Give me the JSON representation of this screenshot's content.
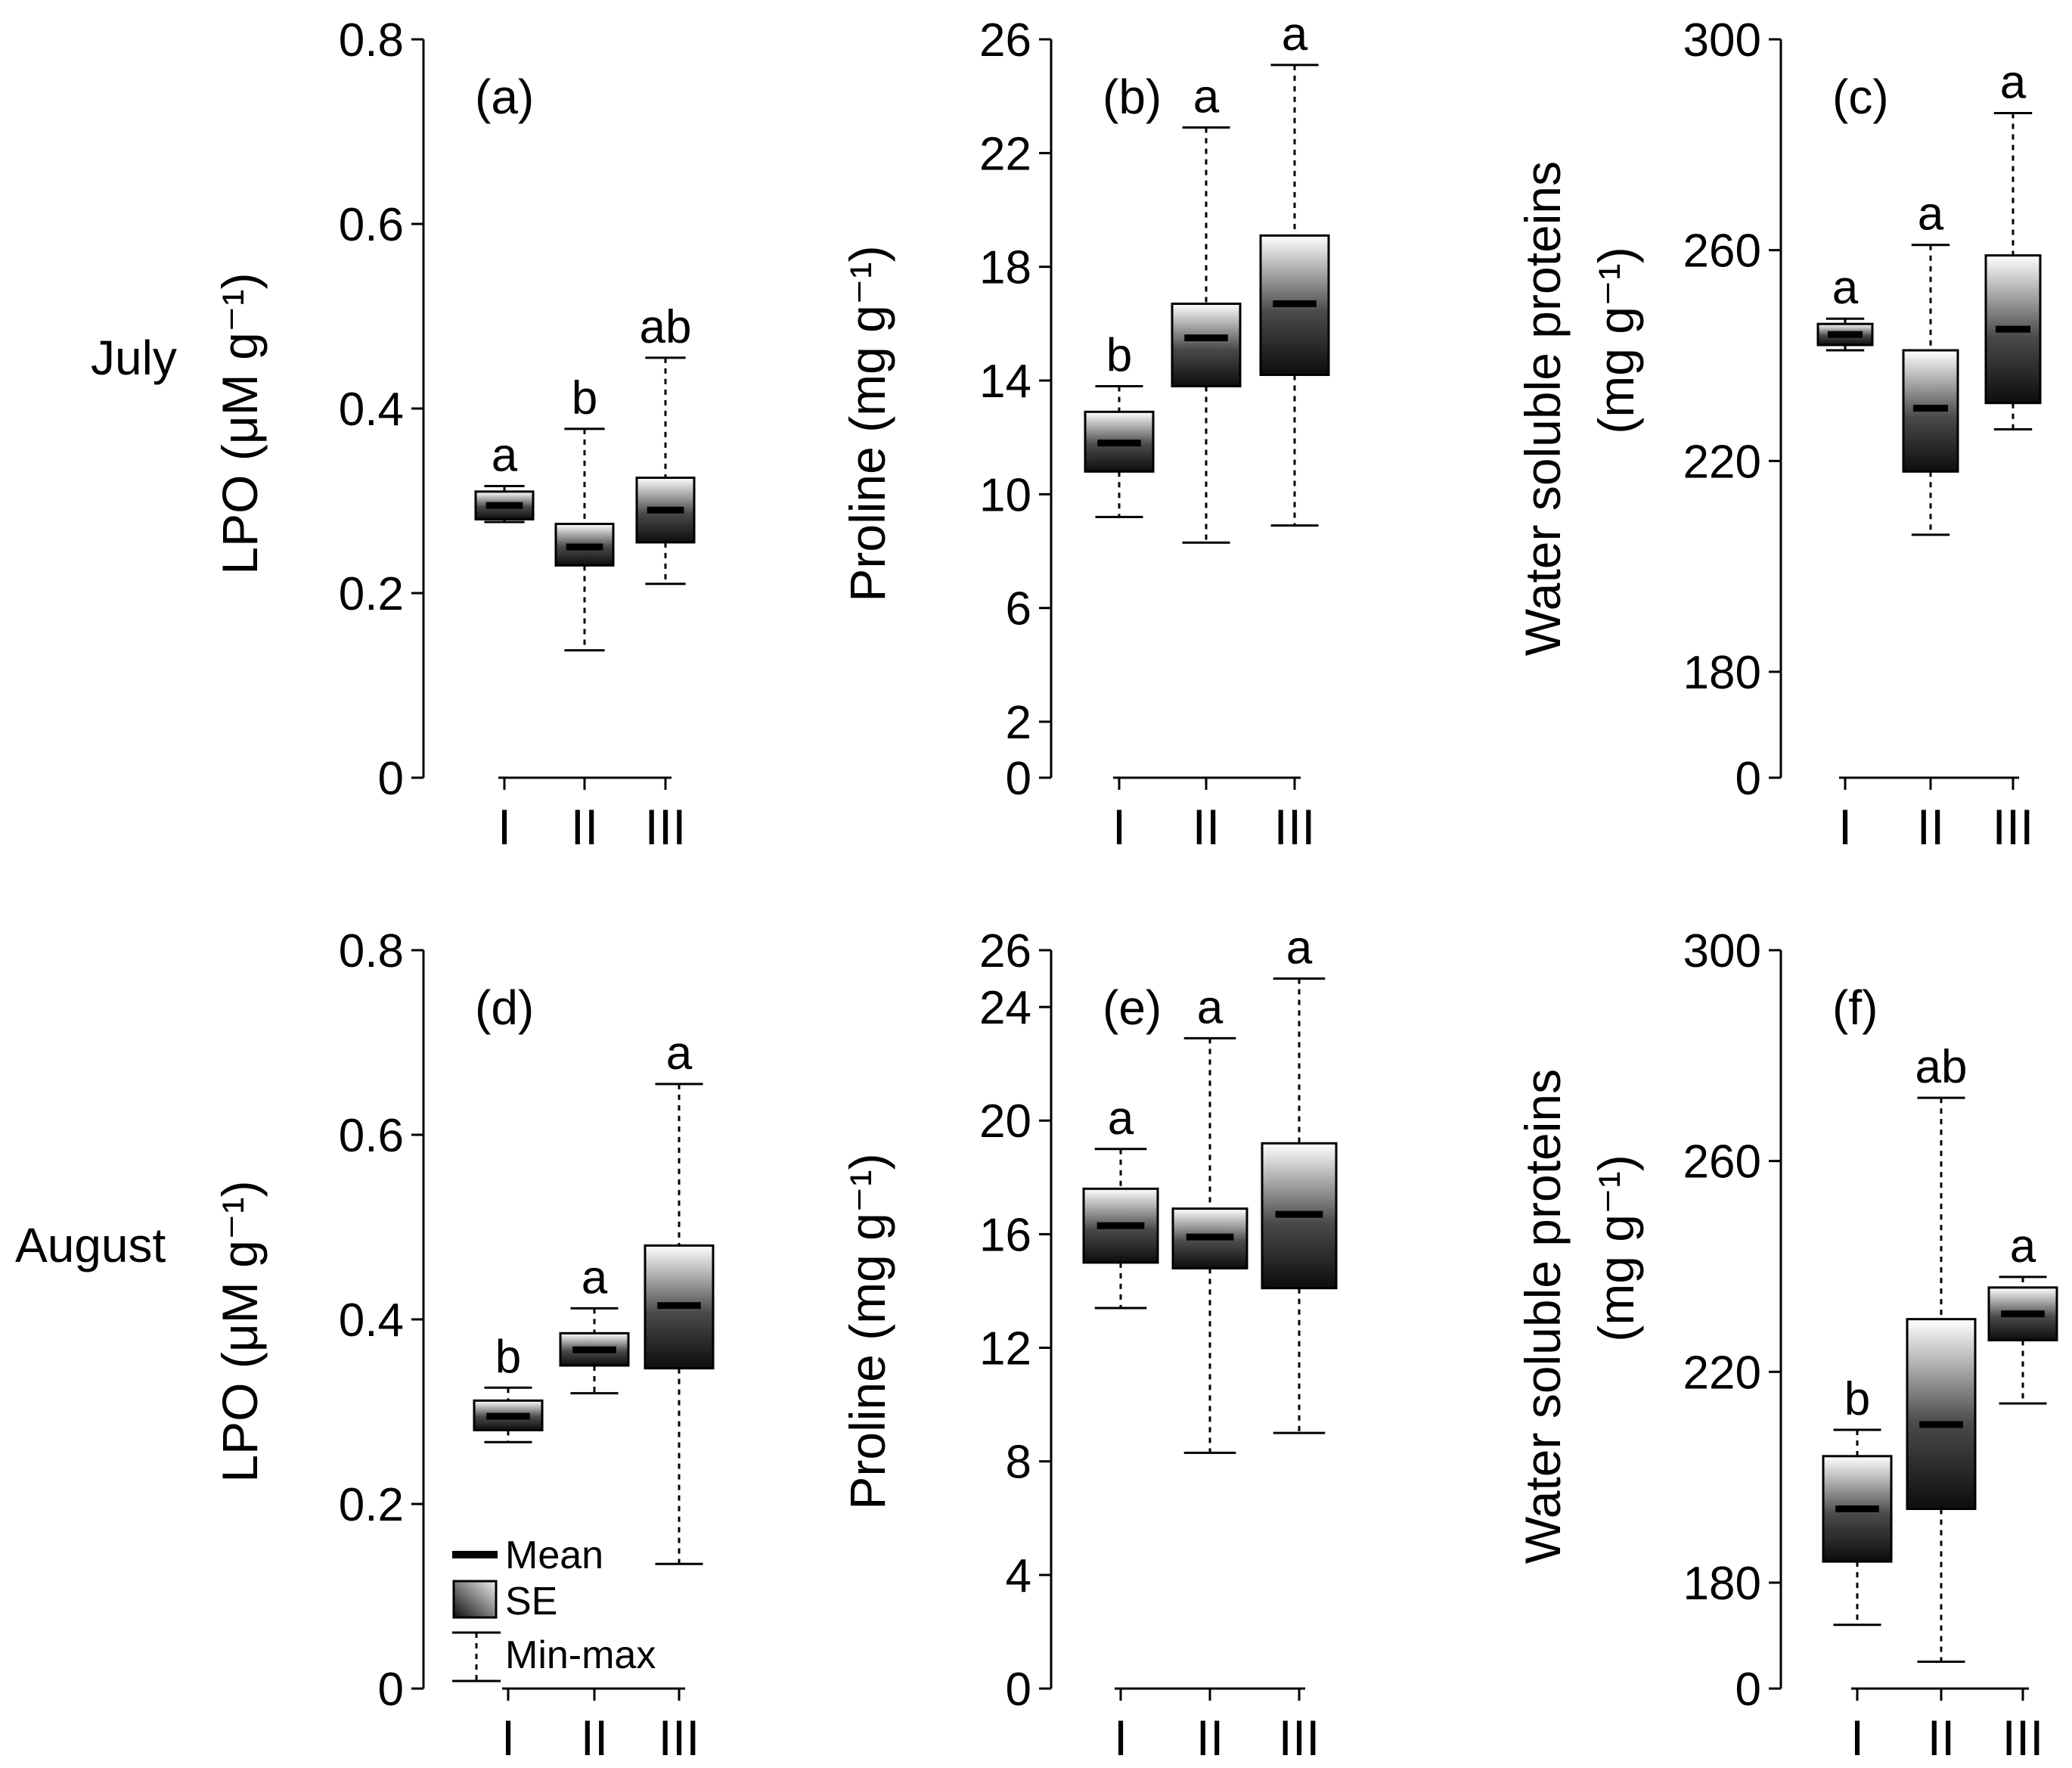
{
  "row_labels": [
    "July",
    "August"
  ],
  "legend": {
    "mean": "Mean",
    "se": "SE",
    "minmax": "Min-max"
  },
  "chart_data": [
    {
      "type": "box",
      "panel_label": "(a)",
      "month": "July",
      "ylabel": "LPO (μM g⁻¹)",
      "yticks": [
        0,
        0.2,
        0.4,
        0.6,
        0.8
      ],
      "ytick_labels": [
        "0",
        "0.2",
        "0.4",
        "0.6",
        "0.8"
      ],
      "ylim": [
        0,
        0.8
      ],
      "categories": [
        "I",
        "II",
        "III"
      ],
      "boxes": [
        {
          "mean": 0.295,
          "se_low": 0.28,
          "se_high": 0.31,
          "min": 0.277,
          "max": 0.316,
          "sig": "a"
        },
        {
          "mean": 0.25,
          "se_low": 0.23,
          "se_high": 0.275,
          "min": 0.138,
          "max": 0.378,
          "sig": "b"
        },
        {
          "mean": 0.29,
          "se_low": 0.255,
          "se_high": 0.325,
          "min": 0.21,
          "max": 0.455,
          "sig": "ab"
        }
      ]
    },
    {
      "type": "box",
      "panel_label": "(b)",
      "month": "July",
      "ylabel": "Proline (mg g⁻¹)",
      "yticks": [
        0,
        2,
        6,
        10,
        14,
        18,
        22,
        26
      ],
      "ytick_labels": [
        "0",
        "2",
        "6",
        "10",
        "14",
        "18",
        "22",
        "26"
      ],
      "ylim": [
        0,
        26
      ],
      "categories": [
        "I",
        "II",
        "III"
      ],
      "boxes": [
        {
          "mean": 11.8,
          "se_low": 10.8,
          "se_high": 12.9,
          "min": 9.2,
          "max": 13.8,
          "sig": "b"
        },
        {
          "mean": 15.5,
          "se_low": 13.8,
          "se_high": 16.7,
          "min": 8.3,
          "max": 22.9,
          "sig": "a"
        },
        {
          "mean": 16.7,
          "se_low": 14.2,
          "se_high": 19.1,
          "min": 8.9,
          "max": 25.1,
          "sig": "a"
        }
      ]
    },
    {
      "type": "box",
      "panel_label": "(c)",
      "month": "July",
      "ylabel_lines": [
        "Water soluble proteins",
        "(mg g⁻¹)"
      ],
      "yticks": [
        0,
        180,
        220,
        260,
        300
      ],
      "ytick_labels": [
        "0",
        "180",
        "220",
        "260",
        "300"
      ],
      "ylim": [
        0,
        300
      ],
      "axis_break": "0 then 160–300 linear",
      "categories": [
        "I",
        "II",
        "III"
      ],
      "boxes": [
        {
          "mean": 244,
          "se_low": 242,
          "se_high": 246,
          "min": 241,
          "max": 247,
          "sig": "a"
        },
        {
          "mean": 230,
          "se_low": 218,
          "se_high": 241,
          "min": 206,
          "max": 261,
          "sig": "a"
        },
        {
          "mean": 245,
          "se_low": 231,
          "se_high": 259,
          "min": 226,
          "max": 286,
          "sig": "a"
        }
      ]
    },
    {
      "type": "box",
      "panel_label": "(d)",
      "month": "August",
      "ylabel": "LPO (μM g⁻¹)",
      "yticks": [
        0,
        0.2,
        0.4,
        0.6,
        0.8
      ],
      "ytick_labels": [
        "0",
        "0.2",
        "0.4",
        "0.6",
        "0.8"
      ],
      "ylim": [
        0,
        0.8
      ],
      "categories": [
        "I",
        "II",
        "III"
      ],
      "boxes": [
        {
          "mean": 0.295,
          "se_low": 0.28,
          "se_high": 0.312,
          "min": 0.267,
          "max": 0.326,
          "sig": "b"
        },
        {
          "mean": 0.367,
          "se_low": 0.35,
          "se_high": 0.385,
          "min": 0.32,
          "max": 0.412,
          "sig": "a"
        },
        {
          "mean": 0.415,
          "se_low": 0.347,
          "se_high": 0.48,
          "min": 0.135,
          "max": 0.655,
          "sig": "a"
        }
      ]
    },
    {
      "type": "box",
      "panel_label": "(e)",
      "month": "August",
      "ylabel": "Proline (mg g⁻¹)",
      "yticks": [
        0,
        4,
        8,
        12,
        16,
        20,
        24,
        26
      ],
      "ytick_labels": [
        "0",
        "4",
        "8",
        "12",
        "16",
        "20",
        "24",
        "26"
      ],
      "ylim": [
        0,
        26
      ],
      "categories": [
        "I",
        "II",
        "III"
      ],
      "boxes": [
        {
          "mean": 16.3,
          "se_low": 15.0,
          "se_high": 17.6,
          "min": 13.4,
          "max": 19.0,
          "sig": "a"
        },
        {
          "mean": 15.9,
          "se_low": 14.8,
          "se_high": 16.9,
          "min": 8.3,
          "max": 22.9,
          "sig": "a"
        },
        {
          "mean": 16.7,
          "se_low": 14.1,
          "se_high": 19.2,
          "min": 9.0,
          "max": 25.0,
          "sig": "a"
        }
      ]
    },
    {
      "type": "box",
      "panel_label": "(f)",
      "month": "August",
      "ylabel_lines": [
        "Water soluble proteins",
        "(mg g⁻¹)"
      ],
      "yticks": [
        0,
        180,
        220,
        260,
        300
      ],
      "ytick_labels": [
        "0",
        "180",
        "220",
        "260",
        "300"
      ],
      "ylim": [
        0,
        300
      ],
      "axis_break": "0 then 160–300 linear",
      "categories": [
        "I",
        "II",
        "III"
      ],
      "boxes": [
        {
          "mean": 194,
          "se_low": 184,
          "se_high": 204,
          "min": 172,
          "max": 209,
          "sig": "b"
        },
        {
          "mean": 210,
          "se_low": 194,
          "se_high": 230,
          "min": 165,
          "max": 272,
          "sig": "ab"
        },
        {
          "mean": 231,
          "se_low": 226,
          "se_high": 236,
          "min": 214,
          "max": 238,
          "sig": "a"
        }
      ]
    }
  ]
}
